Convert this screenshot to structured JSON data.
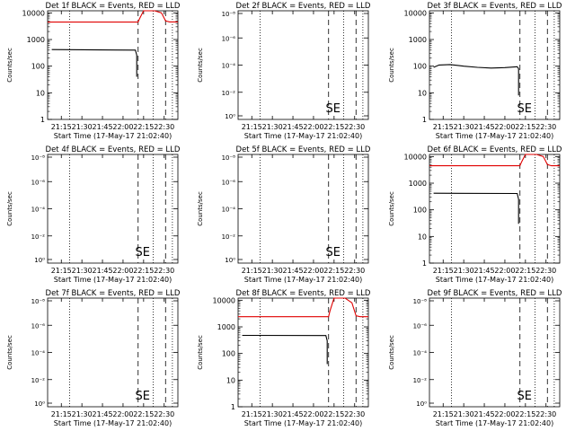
{
  "window": {
    "background": "#ffffff"
  },
  "colors": {
    "events": "#000000",
    "lld": "#e00000",
    "axis": "#000000"
  },
  "shared": {
    "xlabel": "Start Time (17-May-17 21:02:40)",
    "ylabel": "Counts/sec",
    "xticks": [
      "21:15",
      "21:30",
      "21:45",
      "22:00",
      "22:15",
      "22:30"
    ],
    "xtick_minutes": [
      15,
      30,
      45,
      60,
      75,
      90
    ],
    "xlim_minutes": [
      5,
      100
    ],
    "dotted_lines_minutes": [
      21,
      82,
      96
    ],
    "dashed_lines_minutes": [
      71,
      91
    ],
    "log_ticks": [
      "1",
      "10",
      "100",
      "1000",
      "10000"
    ],
    "log_ticks_small": [
      "10⁻⁸",
      "10⁻⁶",
      "10⁻⁴",
      "10⁻²",
      "10⁰"
    ]
  },
  "chart_data": [
    {
      "type": "line",
      "title": "Det 1f BLACK = Events, RED = LLD",
      "yscale": "log",
      "ylim": [
        1,
        12000
      ],
      "yticks_style": "large",
      "marker_text": "",
      "series": [
        {
          "color": "#000000",
          "x": [
            8,
            69,
            70,
            70
          ],
          "y": [
            420,
            400,
            260,
            40
          ]
        },
        {
          "color": "#e00000",
          "x": [
            5,
            71,
            72,
            75,
            83,
            88,
            91,
            94,
            100
          ],
          "y": [
            4500,
            4500,
            6000,
            12000,
            12000,
            10000,
            5000,
            4600,
            4600
          ]
        }
      ]
    },
    {
      "type": "line",
      "title": "Det 2f BLACK = Events, RED = LLD",
      "yscale": "log",
      "ylim": [
        0.8,
        12000
      ],
      "yticks_style": "small",
      "marker_text": "SE",
      "series": []
    },
    {
      "type": "line",
      "title": "Det 3f BLACK = Events, RED = LLD",
      "yscale": "log",
      "ylim": [
        1,
        12000
      ],
      "yticks_style": "large",
      "marker_text": "SE",
      "series": [
        {
          "color": "#000000",
          "x": [
            8,
            12,
            20,
            30,
            40,
            50,
            60,
            69,
            70,
            70
          ],
          "y": [
            90,
            110,
            115,
            100,
            90,
            85,
            88,
            95,
            80,
            8
          ]
        }
      ]
    },
    {
      "type": "line",
      "title": "Det 4f BLACK = Events, RED = LLD",
      "yscale": "log",
      "ylim": [
        0.8,
        12000
      ],
      "yticks_style": "small",
      "marker_text": "SE",
      "series": []
    },
    {
      "type": "line",
      "title": "Det 5f BLACK = Events, RED = LLD",
      "yscale": "log",
      "ylim": [
        0.8,
        12000
      ],
      "yticks_style": "small",
      "marker_text": "SE",
      "series": []
    },
    {
      "type": "line",
      "title": "Det 6f BLACK = Events, RED = LLD",
      "yscale": "log",
      "ylim": [
        1,
        12000
      ],
      "yticks_style": "large",
      "marker_text": "",
      "series": [
        {
          "color": "#000000",
          "x": [
            8,
            69,
            70,
            70
          ],
          "y": [
            420,
            410,
            250,
            30
          ]
        },
        {
          "color": "#e00000",
          "x": [
            5,
            71,
            72,
            75,
            83,
            88,
            91,
            94,
            100
          ],
          "y": [
            4500,
            4500,
            6000,
            12000,
            12000,
            10000,
            5000,
            4500,
            4500
          ]
        }
      ]
    },
    {
      "type": "line",
      "title": "Det 7f BLACK = Events, RED = LLD",
      "yscale": "log",
      "ylim": [
        0.8,
        12000
      ],
      "yticks_style": "small",
      "marker_text": "SE",
      "series": []
    },
    {
      "type": "line",
      "title": "Det 8f BLACK = Events, RED = LLD",
      "yscale": "log",
      "ylim": [
        1,
        12000
      ],
      "yticks_style": "large",
      "marker_text": "",
      "series": [
        {
          "color": "#000000",
          "x": [
            8,
            69,
            70,
            70
          ],
          "y": [
            480,
            470,
            300,
            40
          ]
        },
        {
          "color": "#e00000",
          "x": [
            5,
            71,
            72,
            75,
            83,
            88,
            91,
            94,
            100
          ],
          "y": [
            2400,
            2400,
            4000,
            12000,
            12000,
            8000,
            2600,
            2400,
            2400
          ]
        }
      ]
    },
    {
      "type": "line",
      "title": "Det 9f BLACK = Events, RED = LLD",
      "yscale": "log",
      "ylim": [
        0.8,
        12000
      ],
      "yticks_style": "small",
      "marker_text": "SE",
      "series": []
    }
  ]
}
